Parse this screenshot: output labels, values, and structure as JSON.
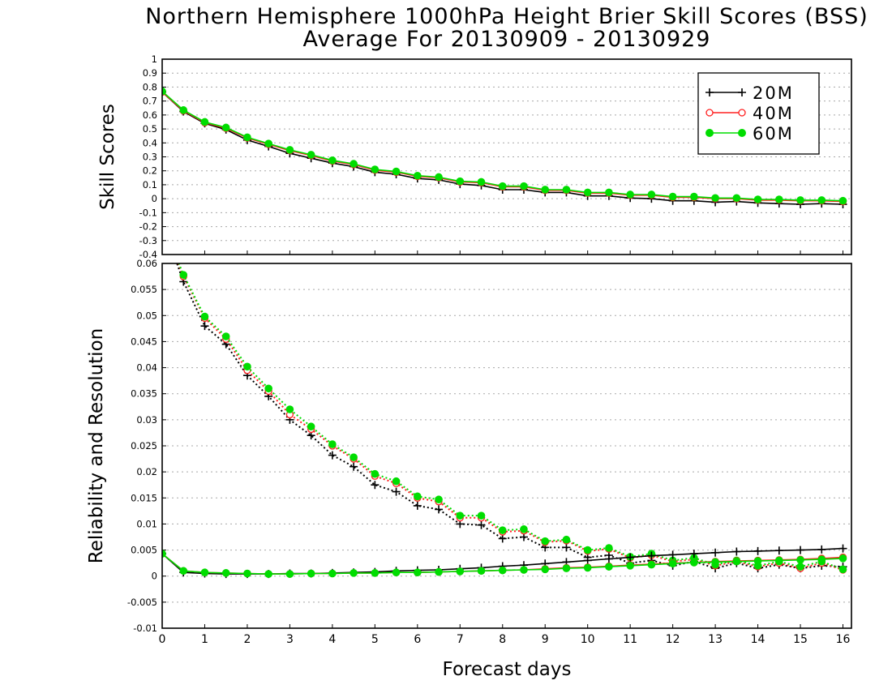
{
  "chart_title": {
    "line1": "Northern Hemisphere 1000hPa Height Brier Skill Scores (BSS)",
    "line2": "Average For 20130909 - 20130929"
  },
  "xlabel": "Forecast days",
  "colors": {
    "20M": "#000000",
    "40M": "#ff2020",
    "60M": "#00dd00"
  },
  "chart_data": [
    {
      "type": "line",
      "ylabel": "Skill Scores",
      "xlim": [
        0,
        16.2
      ],
      "ylim": [
        -0.4,
        1
      ],
      "x_ticks": [
        0,
        1,
        2,
        3,
        4,
        5,
        6,
        7,
        8,
        9,
        10,
        11,
        12,
        13,
        14,
        15,
        16
      ],
      "y_ticks": [
        "1",
        "0.9",
        "0.8",
        "0.7",
        "0.6",
        "0.5",
        "0.4",
        "0.3",
        "0.2",
        "0.1",
        "0",
        "-0.1",
        "-0.2",
        "-0.3",
        "-0.4"
      ],
      "grid": "dotted horizontal",
      "legend": {
        "placement": "top-right",
        "entries": [
          "20M",
          "40M",
          "60M"
        ]
      },
      "x": [
        0,
        0.5,
        1,
        1.5,
        2,
        2.5,
        3,
        3.5,
        4,
        4.5,
        5,
        5.5,
        6,
        6.5,
        7,
        7.5,
        8,
        8.5,
        9,
        9.5,
        10,
        10.5,
        11,
        11.5,
        12,
        12.5,
        13,
        13.5,
        14,
        14.5,
        15,
        15.5,
        16
      ],
      "series": [
        {
          "name": "20M",
          "style": "solid",
          "marker": "plus",
          "values": [
            0.765,
            0.625,
            0.54,
            0.495,
            0.42,
            0.375,
            0.325,
            0.29,
            0.255,
            0.23,
            0.19,
            0.175,
            0.145,
            0.135,
            0.105,
            0.095,
            0.065,
            0.065,
            0.045,
            0.045,
            0.02,
            0.02,
            0.005,
            0.0,
            -0.015,
            -0.015,
            -0.025,
            -0.02,
            -0.03,
            -0.035,
            -0.04,
            -0.035,
            -0.04
          ]
        },
        {
          "name": "40M",
          "style": "solid",
          "marker": "open-circle",
          "values": [
            0.765,
            0.63,
            0.545,
            0.505,
            0.435,
            0.39,
            0.345,
            0.31,
            0.27,
            0.245,
            0.205,
            0.19,
            0.16,
            0.15,
            0.12,
            0.115,
            0.085,
            0.085,
            0.06,
            0.06,
            0.04,
            0.04,
            0.025,
            0.025,
            0.01,
            0.01,
            0.0,
            0.0,
            -0.01,
            -0.01,
            -0.015,
            -0.015,
            -0.02
          ]
        },
        {
          "name": "60M",
          "style": "solid",
          "marker": "filled-circle",
          "values": [
            0.77,
            0.635,
            0.55,
            0.51,
            0.44,
            0.395,
            0.35,
            0.315,
            0.275,
            0.25,
            0.21,
            0.195,
            0.165,
            0.155,
            0.125,
            0.12,
            0.09,
            0.09,
            0.065,
            0.065,
            0.045,
            0.045,
            0.03,
            0.03,
            0.015,
            0.015,
            0.005,
            0.005,
            -0.005,
            -0.005,
            -0.01,
            -0.01,
            -0.015
          ]
        }
      ]
    },
    {
      "type": "line",
      "ylabel": "Reliability and Resolution",
      "xlim": [
        0,
        16.2
      ],
      "ylim": [
        -0.01,
        0.06
      ],
      "x_ticks": [
        0,
        1,
        2,
        3,
        4,
        5,
        6,
        7,
        8,
        9,
        10,
        11,
        12,
        13,
        14,
        15,
        16
      ],
      "y_ticks": [
        "0.06",
        "0.055",
        "0.05",
        "0.045",
        "0.04",
        "0.035",
        "0.03",
        "0.025",
        "0.02",
        "0.015",
        "0.01",
        "0.005",
        "0",
        "-0.005",
        "-0.01"
      ],
      "grid": "dotted horizontal",
      "x": [
        0,
        0.5,
        1,
        1.5,
        2,
        2.5,
        3,
        3.5,
        4,
        4.5,
        5,
        5.5,
        6,
        6.5,
        7,
        7.5,
        8,
        8.5,
        9,
        9.5,
        10,
        10.5,
        11,
        11.5,
        12,
        12.5,
        13,
        13.5,
        14,
        14.5,
        15,
        15.5,
        16
      ],
      "series": [
        {
          "name": "20M",
          "style": "dotted",
          "marker": "plus",
          "label_kind": "resolution",
          "clipped_start": [
            0,
            0.068
          ],
          "values": [
            null,
            0.0565,
            0.048,
            0.0445,
            0.0385,
            0.0345,
            0.03,
            0.027,
            0.0232,
            0.021,
            0.0175,
            0.0162,
            0.0135,
            0.0128,
            0.01,
            0.0098,
            0.0072,
            0.0075,
            0.0055,
            0.0055,
            0.0036,
            0.004,
            0.0025,
            0.003,
            0.002,
            0.0028,
            0.0015,
            0.0025,
            0.0015,
            0.0022,
            0.0015,
            0.002,
            0.0018
          ]
        },
        {
          "name": "40M",
          "style": "dotted",
          "marker": "open-circle",
          "label_kind": "resolution",
          "clipped_start": [
            0,
            0.068
          ],
          "values": [
            null,
            0.0575,
            0.0495,
            0.0455,
            0.0395,
            0.0355,
            0.031,
            0.0282,
            0.025,
            0.0225,
            0.0192,
            0.0178,
            0.015,
            0.0143,
            0.0112,
            0.0112,
            0.0085,
            0.0087,
            0.0065,
            0.0068,
            0.0048,
            0.0052,
            0.0035,
            0.004,
            0.0028,
            0.0032,
            0.002,
            0.0028,
            0.0018,
            0.0025,
            0.0015,
            0.0025,
            0.0012
          ]
        },
        {
          "name": "60M",
          "style": "dotted",
          "marker": "filled-circle",
          "label_kind": "resolution",
          "clipped_start": [
            0,
            0.068
          ],
          "values": [
            null,
            0.0578,
            0.0498,
            0.046,
            0.0402,
            0.036,
            0.032,
            0.0287,
            0.0253,
            0.0228,
            0.0196,
            0.0182,
            0.0153,
            0.0147,
            0.0116,
            0.0116,
            0.0088,
            0.009,
            0.0067,
            0.007,
            0.005,
            0.0054,
            0.0037,
            0.0043,
            0.003,
            0.0035,
            0.0022,
            0.003,
            0.002,
            0.0028,
            0.0018,
            0.0028,
            0.0013
          ]
        },
        {
          "name": "20M",
          "style": "solid",
          "marker": "plus",
          "label_kind": "reliability",
          "values": [
            0.0043,
            0.0007,
            0.0005,
            0.0004,
            0.0004,
            0.0004,
            0.0005,
            0.0005,
            0.0006,
            0.0007,
            0.0008,
            0.001,
            0.0011,
            0.0012,
            0.0014,
            0.0016,
            0.0019,
            0.0021,
            0.0024,
            0.0027,
            0.003,
            0.0033,
            0.0036,
            0.0039,
            0.0041,
            0.0043,
            0.0045,
            0.0047,
            0.0048,
            0.0049,
            0.005,
            0.0051,
            0.0053
          ]
        },
        {
          "name": "40M",
          "style": "solid",
          "marker": "open-circle",
          "label_kind": "reliability",
          "values": [
            0.0043,
            0.001,
            0.0007,
            0.0006,
            0.0005,
            0.0004,
            0.0004,
            0.0005,
            0.0005,
            0.0006,
            0.0006,
            0.0007,
            0.0007,
            0.0008,
            0.0009,
            0.001,
            0.0011,
            0.0012,
            0.0014,
            0.0016,
            0.0017,
            0.0019,
            0.0021,
            0.0023,
            0.0025,
            0.0026,
            0.0028,
            0.0029,
            0.003,
            0.0031,
            0.0032,
            0.0034,
            0.0036
          ]
        },
        {
          "name": "60M",
          "style": "solid",
          "marker": "filled-circle",
          "label_kind": "reliability",
          "values": [
            0.0043,
            0.001,
            0.0007,
            0.0006,
            0.0005,
            0.0004,
            0.0004,
            0.0005,
            0.0005,
            0.0006,
            0.0006,
            0.0007,
            0.0007,
            0.0008,
            0.0009,
            0.001,
            0.0011,
            0.0012,
            0.0013,
            0.0015,
            0.0016,
            0.0018,
            0.002,
            0.0022,
            0.0024,
            0.0026,
            0.0027,
            0.0028,
            0.0029,
            0.003,
            0.0031,
            0.0032,
            0.0034
          ]
        }
      ]
    }
  ]
}
